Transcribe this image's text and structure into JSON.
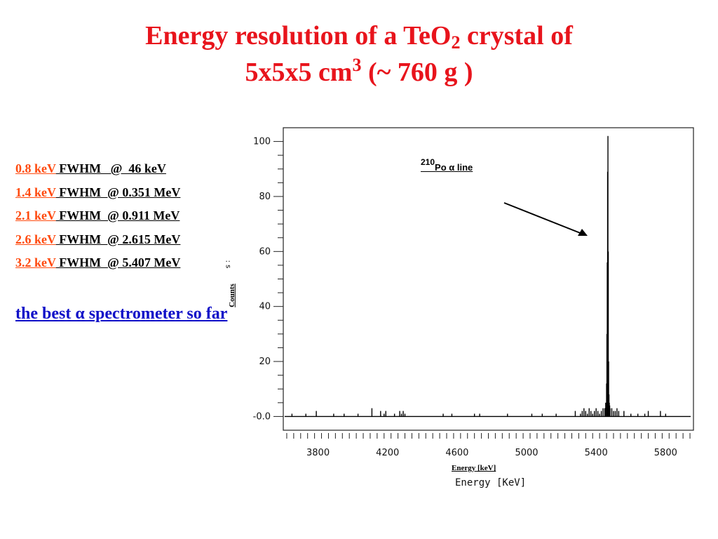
{
  "title": {
    "line1_prefix": "Energy resolution of a  TeO",
    "line1_sub": "2",
    "line1_suffix": " crystal of",
    "line2_prefix": "5x5x5 cm",
    "line2_sup": "3",
    "line2_suffix": " (~ 760 g )"
  },
  "resolutions": [
    {
      "value": "0.8 keV",
      "desc": " FWHM   @  46 keV"
    },
    {
      "value": "1.4 keV",
      "desc": " FWHM  @ 0.351 MeV"
    },
    {
      "value": "2.1 keV",
      "desc": " FWHM  @ 0.911 MeV"
    },
    {
      "value": "2.6 keV",
      "desc": " FWHM  @ 2.615 MeV"
    },
    {
      "value": "3.2 keV",
      "desc": " FWHM  @ 5.407 MeV"
    }
  ],
  "best_text": "the best α spectrometer so far",
  "colors": {
    "title": "#e8141c",
    "resolution_value": "#ff4a0e",
    "best_text": "#1010c8"
  },
  "chart_data": {
    "type": "line",
    "title": "",
    "annotation": {
      "sup": "210",
      "text": "Po α line",
      "arrow_target_x": 5470,
      "arrow_target_y": 66
    },
    "xlabel": "Energy   [KeV]",
    "xlabel_small": "Energy [keV]",
    "ylabel": "Counts",
    "ylabel_stub": ": s",
    "xlim": [
      3600,
      5960
    ],
    "ylim": [
      -5,
      105
    ],
    "x_ticks": [
      3800,
      4200,
      4600,
      5000,
      5400,
      5800
    ],
    "x_tick_labels": [
      "3800",
      "4200",
      "4600",
      "5000",
      "5400",
      "5800"
    ],
    "y_ticks": [
      0,
      20,
      40,
      60,
      80,
      100
    ],
    "y_tick_labels": [
      "-0.0",
      "20",
      "40",
      "60",
      "80",
      "100"
    ],
    "grid": false,
    "series": [
      {
        "x": [
          3650,
          3730,
          3790,
          3890,
          3950,
          4030,
          4110,
          4160,
          4180,
          4190,
          4240,
          4270,
          4280,
          4290,
          4300,
          4520,
          4570,
          4700,
          4730,
          4890,
          5030,
          5090,
          5170,
          5280,
          5310,
          5320,
          5330,
          5340,
          5350,
          5360,
          5370,
          5380,
          5390,
          5400,
          5410,
          5420,
          5430,
          5440,
          5450,
          5455,
          5460,
          5462,
          5464,
          5466,
          5468,
          5470,
          5472,
          5474,
          5476,
          5478,
          5480,
          5490,
          5500,
          5510,
          5520,
          5530,
          5560,
          5600,
          5640,
          5680,
          5700,
          5770,
          5800
        ],
        "y": [
          1,
          1,
          2,
          1,
          1,
          1,
          3,
          2,
          1,
          2,
          1,
          2,
          1,
          2,
          1,
          1,
          1,
          1,
          1,
          1,
          1,
          1,
          1,
          2,
          1,
          2,
          3,
          2,
          1,
          3,
          2,
          1,
          2,
          3,
          2,
          1,
          2,
          3,
          3,
          5,
          12,
          30,
          56,
          89,
          102,
          60,
          20,
          8,
          5,
          4,
          3,
          3,
          2,
          2,
          3,
          2,
          2,
          1,
          1,
          1,
          2,
          2,
          1
        ]
      }
    ]
  }
}
